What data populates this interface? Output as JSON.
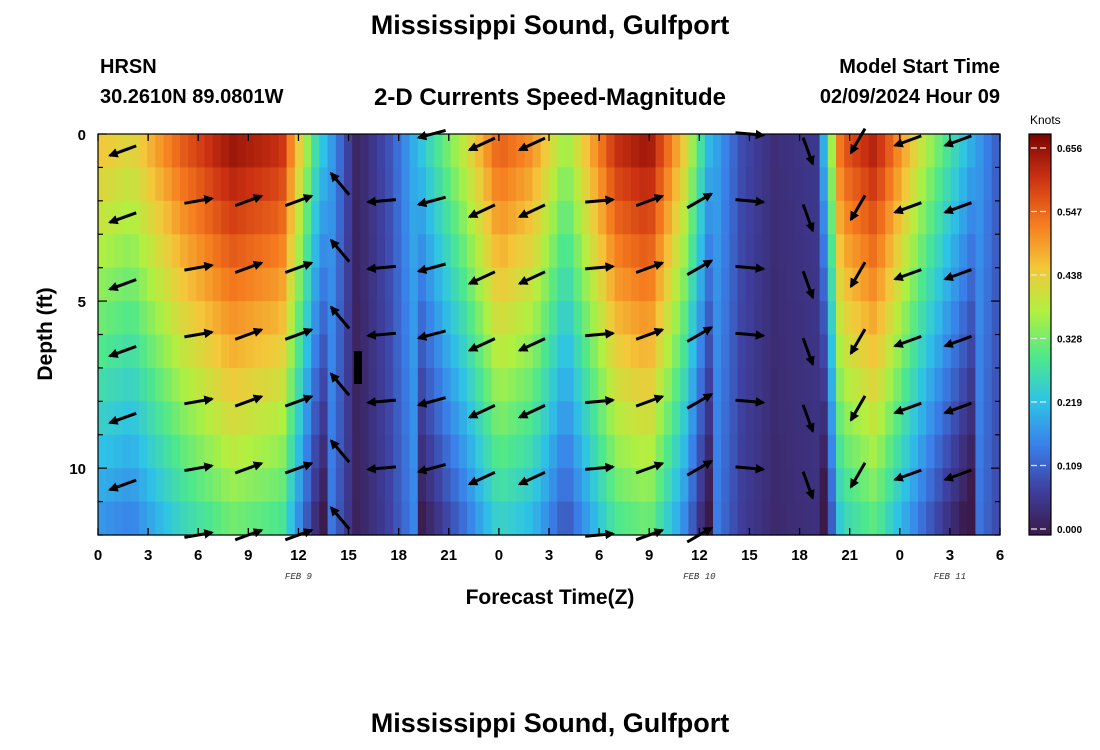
{
  "header": {
    "title": "Mississippi Sound, Gulfport",
    "station_id": "HRSN",
    "coordinates": "30.2610N  89.0801W",
    "plot_title": "2-D Currents Speed-Magnitude",
    "model_start_label": "Model Start Time",
    "model_start_value": "02/09/2024 Hour 09"
  },
  "footer": {
    "title": "Mississippi Sound, Gulfport"
  },
  "chart_data": {
    "type": "heatmap",
    "title": "2-D Currents Speed-Magnitude",
    "xlabel": "Forecast Time(Z)",
    "ylabel": "Depth (ft)",
    "x_unit": "hours since 2024-02-09 00Z",
    "xlim": [
      0,
      54
    ],
    "ylim": [
      12,
      0
    ],
    "x_tick_labels": [
      "0",
      "3",
      "6",
      "9",
      "12",
      "15",
      "18",
      "21",
      "0",
      "3",
      "6",
      "9",
      "12",
      "15",
      "18",
      "21",
      "0",
      "3",
      "6"
    ],
    "y_tick_labels": [
      "0",
      "5",
      "10"
    ],
    "date_labels": [
      {
        "x": 12,
        "text": "FEB 9"
      },
      {
        "x": 36,
        "text": "FEB 10"
      },
      {
        "x": 51,
        "text": "FEB 11"
      }
    ],
    "colorbar": {
      "label": "Knots",
      "min": 0.0,
      "max": 0.656,
      "ticks": [
        "0.656",
        "0.547",
        "0.438",
        "0.328",
        "0.219",
        "0.109",
        "0.000"
      ],
      "colors": [
        "#3b1a49",
        "#3e3f9e",
        "#3a7fe9",
        "#2ec3e6",
        "#4ee88c",
        "#b0f040",
        "#f4c73a",
        "#f57a1e",
        "#cc3212",
        "#7a0403"
      ]
    },
    "grid": false,
    "speed_profile": {
      "times": [
        0,
        2,
        5,
        8,
        11,
        13,
        15.5,
        17.5,
        19.5,
        22,
        24,
        26,
        28,
        31,
        33,
        35,
        36.5,
        38.5,
        40.5,
        43,
        44.5,
        46.5,
        48,
        49.5,
        51,
        53,
        54
      ],
      "speeds": [
        0.45,
        0.42,
        0.55,
        0.64,
        0.6,
        0.28,
        0.02,
        0.1,
        0.24,
        0.4,
        0.55,
        0.5,
        0.35,
        0.6,
        0.64,
        0.45,
        0.22,
        0.09,
        0.04,
        0.06,
        0.55,
        0.62,
        0.5,
        0.38,
        0.28,
        0.16,
        0.1
      ]
    },
    "vectors": [
      {
        "t": 1.5,
        "depths": [
          0.5,
          2.5,
          4.5,
          6.5,
          8.5,
          10.5
        ],
        "dir": 250
      },
      {
        "t": 6.0,
        "depths": [
          2.0,
          4.0,
          6.0,
          8.0,
          10.0,
          12.0
        ],
        "dir": 80
      },
      {
        "t": 9.0,
        "depths": [
          2.0,
          4.0,
          6.0,
          8.0,
          10.0,
          12.0
        ],
        "dir": 70
      },
      {
        "t": 12.0,
        "depths": [
          2.0,
          4.0,
          6.0,
          8.0,
          10.0,
          12.0
        ],
        "dir": 70
      },
      {
        "t": 14.5,
        "depths": [
          1.5,
          3.5,
          5.5,
          7.5,
          9.5,
          11.5
        ],
        "dir": 320
      },
      {
        "t": 17.0,
        "depths": [
          2.0,
          4.0,
          6.0,
          8.0,
          10.0
        ],
        "dir": 265
      },
      {
        "t": 20.0,
        "depths": [
          0.0,
          2.0,
          4.0,
          6.0,
          8.0,
          10.0
        ],
        "dir": 255
      },
      {
        "t": 23.0,
        "depths": [
          0.3,
          2.3,
          4.3,
          6.3,
          8.3,
          10.3
        ],
        "dir": 245
      },
      {
        "t": 26.0,
        "depths": [
          0.3,
          2.3,
          4.3,
          6.3,
          8.3,
          10.3
        ],
        "dir": 245
      },
      {
        "t": 30.0,
        "depths": [
          2.0,
          4.0,
          6.0,
          8.0,
          10.0,
          12.0
        ],
        "dir": 85
      },
      {
        "t": 33.0,
        "depths": [
          2.0,
          4.0,
          6.0,
          8.0,
          10.0,
          12.0
        ],
        "dir": 70
      },
      {
        "t": 36.0,
        "depths": [
          2.0,
          4.0,
          6.0,
          8.0,
          10.0,
          12.0
        ],
        "dir": 60
      },
      {
        "t": 39.0,
        "depths": [
          0.0,
          2.0,
          4.0,
          6.0,
          8.0,
          10.0
        ],
        "dir": 95
      },
      {
        "t": 42.5,
        "depths": [
          0.5,
          2.5,
          4.5,
          6.5,
          8.5,
          10.5
        ],
        "dir": 160
      },
      {
        "t": 45.5,
        "depths": [
          0.2,
          2.2,
          4.2,
          6.2,
          8.2,
          10.2
        ],
        "dir": 210
      },
      {
        "t": 48.5,
        "depths": [
          0.2,
          2.2,
          4.2,
          6.2,
          8.2,
          10.2
        ],
        "dir": 250
      },
      {
        "t": 51.5,
        "depths": [
          0.2,
          2.2,
          4.2,
          6.2,
          8.2,
          10.2
        ],
        "dir": 250
      }
    ]
  }
}
